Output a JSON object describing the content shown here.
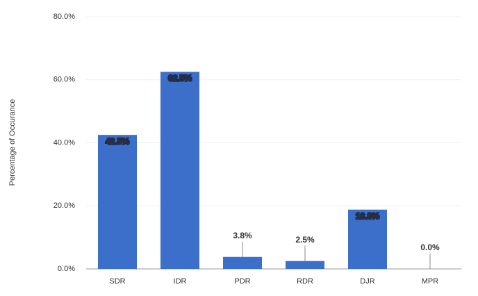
{
  "chart_data": {
    "type": "bar",
    "y_axis_label": "Percentage of Occurance",
    "categories": [
      "SDR",
      "IDR",
      "PDR",
      "RDR",
      "DJR",
      "MPR"
    ],
    "values": [
      42.5,
      62.5,
      3.8,
      2.5,
      18.8,
      0.0
    ],
    "value_labels": [
      "42.5%",
      "62.5%",
      "3.8%",
      "2.5%",
      "18.8%",
      "0.0%"
    ],
    "color": "#3b6fc9",
    "ylim": [
      0,
      80
    ],
    "yticks": [
      {
        "value": 0,
        "label": "0.0%"
      },
      {
        "value": 20,
        "label": "20.0%"
      },
      {
        "value": 40,
        "label": "40.0%"
      },
      {
        "value": 60,
        "label": "60.0%"
      },
      {
        "value": 80,
        "label": "80.0%"
      }
    ],
    "grid": true
  }
}
